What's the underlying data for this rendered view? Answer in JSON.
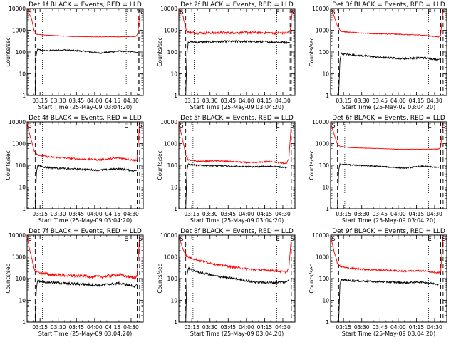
{
  "figure": {
    "background": "#ffffff",
    "events_color": "#000000",
    "lld_color": "#ff0000"
  },
  "chart_data": [
    {
      "type": "line",
      "title": "Det 1f BLACK = Events, RED = LLD",
      "xlabel": "Start Time (25-May-09 03:04:20)",
      "ylabel": "Counts/sec",
      "yscale": "log",
      "ylim": [
        1,
        10000
      ],
      "xlim": [
        "03:04:20",
        "04:40:00"
      ],
      "x_ticks": [
        "03:15",
        "03:30",
        "03:45",
        "04:00",
        "04:15",
        "04:30"
      ],
      "y_ticks": [
        "1",
        "10",
        "100",
        "1000",
        "10000"
      ],
      "markers": {
        "start": "S",
        "end": "E",
        "saa": "S"
      },
      "vlines_dashed": [
        "03:11:00",
        "04:36:00",
        "04:37:00"
      ],
      "vlines_dotted": [
        "03:17:00",
        "04:26:00"
      ],
      "series": [
        {
          "name": "BLACK = Events",
          "color": "#000000",
          "noise": 0.03,
          "x": [
            "03:11:00",
            "03:11:30",
            "03:12:30",
            "03:13:00",
            "03:20:00",
            "03:35:00",
            "03:50:00",
            "04:05:00",
            "04:20:00",
            "04:30:00",
            "04:35:30"
          ],
          "y": [
            1,
            60,
            100,
            130,
            115,
            125,
            110,
            90,
            110,
            105,
            95
          ]
        },
        {
          "name": "RED = LLD",
          "color": "#ff0000",
          "noise": 0.008,
          "x": [
            "03:04:20",
            "03:08:00",
            "03:10:00",
            "03:12:00",
            "03:20:00",
            "03:40:00",
            "04:00:00",
            "04:20:00",
            "04:34:00",
            "04:35:30",
            "04:37:30"
          ],
          "y": [
            9000,
            3500,
            1000,
            650,
            600,
            520,
            500,
            500,
            520,
            700,
            9000
          ]
        }
      ]
    },
    {
      "type": "line",
      "title": "Det 2f BLACK = Events, RED = LLD",
      "xlabel": "Start Time (25-May-09 03:04:20)",
      "ylabel": "Counts/sec",
      "yscale": "log",
      "ylim": [
        1,
        10000
      ],
      "xlim": [
        "03:04:20",
        "04:40:00"
      ],
      "x_ticks": [
        "03:15",
        "03:30",
        "03:45",
        "04:00",
        "04:15",
        "04:30"
      ],
      "y_ticks": [
        "1",
        "10",
        "100",
        "1000",
        "10000"
      ],
      "markers": {
        "start": "S",
        "end": "E",
        "saa": "S"
      },
      "vlines_dashed": [
        "03:10:00",
        "04:36:00",
        "04:37:00"
      ],
      "vlines_dotted": [
        "03:17:00",
        "04:25:00"
      ],
      "series": [
        {
          "name": "BLACK = Events",
          "color": "#000000",
          "noise": 0.05,
          "x": [
            "03:10:00",
            "03:11:00",
            "03:12:00",
            "03:20:00",
            "03:35:00",
            "03:50:00",
            "04:05:00",
            "04:20:00",
            "04:34:00",
            "04:36:00"
          ],
          "y": [
            1,
            80,
            300,
            280,
            300,
            310,
            300,
            290,
            280,
            270
          ]
        },
        {
          "name": "RED = LLD",
          "color": "#ff0000",
          "noise": 0.06,
          "x": [
            "03:04:20",
            "03:08:00",
            "03:10:00",
            "03:12:00",
            "03:20:00",
            "03:40:00",
            "04:00:00",
            "04:20:00",
            "04:34:00",
            "04:36:00",
            "04:38:00"
          ],
          "y": [
            9000,
            4000,
            1200,
            800,
            750,
            760,
            780,
            760,
            760,
            900,
            9000
          ]
        }
      ]
    },
    {
      "type": "line",
      "title": "Det 3f BLACK = Events, RED = LLD",
      "xlabel": "Start Time (25-May-09 03:04:20)",
      "ylabel": "Counts/sec",
      "yscale": "log",
      "ylim": [
        1,
        10000
      ],
      "xlim": [
        "03:04:20",
        "04:40:00"
      ],
      "x_ticks": [
        "03:15",
        "03:30",
        "03:45",
        "04:00",
        "04:15",
        "04:30"
      ],
      "y_ticks": [
        "1",
        "10",
        "100",
        "1000",
        "10000"
      ],
      "markers": {
        "start": "S",
        "end": "E",
        "saa": "S"
      },
      "vlines_dashed": [
        "03:11:00",
        "04:35:00",
        "04:37:00"
      ],
      "vlines_dotted": [
        "03:17:00",
        "04:25:00"
      ],
      "series": [
        {
          "name": "BLACK = Events",
          "color": "#000000",
          "noise": 0.04,
          "x": [
            "03:11:00",
            "03:12:00",
            "03:13:00",
            "03:20:00",
            "03:35:00",
            "03:50:00",
            "04:05:00",
            "04:20:00",
            "04:33:00",
            "04:35:00"
          ],
          "y": [
            1,
            40,
            85,
            75,
            65,
            55,
            50,
            55,
            45,
            50
          ]
        },
        {
          "name": "RED = LLD",
          "color": "#ff0000",
          "noise": 0.02,
          "x": [
            "03:04:20",
            "03:07:00",
            "03:10:00",
            "03:13:00",
            "03:20:00",
            "03:40:00",
            "04:00:00",
            "04:20:00",
            "04:33:00",
            "04:35:00",
            "04:37:00"
          ],
          "y": [
            9000,
            5000,
            1500,
            900,
            800,
            700,
            650,
            600,
            500,
            600,
            9000
          ]
        }
      ]
    },
    {
      "type": "line",
      "title": "Det 4f BLACK = Events, RED = LLD",
      "xlabel": "Start Time (25-May-09 03:04:20)",
      "ylabel": "Counts/sec",
      "yscale": "log",
      "ylim": [
        1,
        10000
      ],
      "xlim": [
        "03:04:20",
        "04:40:00"
      ],
      "x_ticks": [
        "03:15",
        "03:30",
        "03:45",
        "04:00",
        "04:15",
        "04:30"
      ],
      "y_ticks": [
        "1",
        "10",
        "100",
        "1000",
        "10000"
      ],
      "markers": {
        "start": "S",
        "end": "E",
        "saa": "S"
      },
      "vlines_dashed": [
        "03:11:00",
        "04:35:00",
        "04:37:00"
      ],
      "vlines_dotted": [
        "03:17:00",
        "04:25:00"
      ],
      "series": [
        {
          "name": "BLACK = Events",
          "color": "#000000",
          "noise": 0.04,
          "x": [
            "03:11:00",
            "03:12:00",
            "03:13:00",
            "03:20:00",
            "03:35:00",
            "03:50:00",
            "04:05:00",
            "04:20:00",
            "04:33:00",
            "04:35:00"
          ],
          "y": [
            1,
            40,
            100,
            80,
            70,
            65,
            60,
            70,
            55,
            60
          ]
        },
        {
          "name": "RED = LLD",
          "color": "#ff0000",
          "noise": 0.04,
          "x": [
            "03:04:20",
            "03:07:00",
            "03:10:00",
            "03:13:00",
            "03:20:00",
            "03:35:00",
            "03:50:00",
            "04:05:00",
            "04:20:00",
            "04:33:00",
            "04:35:00",
            "04:37:00"
          ],
          "y": [
            9000,
            2000,
            500,
            300,
            250,
            220,
            190,
            180,
            220,
            170,
            180,
            9000
          ]
        }
      ]
    },
    {
      "type": "line",
      "title": "Det 5f BLACK = Events, RED = LLD",
      "xlabel": "Start Time (25-May-09 03:04:20)",
      "ylabel": "Counts/sec",
      "yscale": "log",
      "ylim": [
        1,
        10000
      ],
      "xlim": [
        "03:04:20",
        "04:40:00"
      ],
      "x_ticks": [
        "03:15",
        "03:30",
        "03:45",
        "04:00",
        "04:15",
        "04:30"
      ],
      "y_ticks": [
        "1",
        "10",
        "100",
        "1000",
        "10000"
      ],
      "markers": {
        "start": "S",
        "end": "E",
        "saa": "S"
      },
      "vlines_dashed": [
        "03:10:00",
        "04:35:00",
        "04:37:00"
      ],
      "vlines_dotted": [
        "03:16:00",
        "04:25:00"
      ],
      "series": [
        {
          "name": "BLACK = Events",
          "color": "#000000",
          "noise": 0.03,
          "x": [
            "03:10:00",
            "03:11:00",
            "03:12:00",
            "03:20:00",
            "03:35:00",
            "03:50:00",
            "04:05:00",
            "04:20:00",
            "04:33:00",
            "04:35:00"
          ],
          "y": [
            1,
            60,
            110,
            100,
            95,
            90,
            85,
            90,
            80,
            85
          ]
        },
        {
          "name": "RED = LLD",
          "color": "#ff0000",
          "noise": 0.03,
          "x": [
            "03:04:20",
            "03:07:00",
            "03:10:00",
            "03:12:00",
            "03:20:00",
            "03:35:00",
            "03:50:00",
            "04:05:00",
            "04:20:00",
            "04:33:00",
            "04:35:00",
            "04:37:00"
          ],
          "y": [
            9000,
            2000,
            300,
            180,
            150,
            160,
            145,
            130,
            150,
            120,
            200,
            9000
          ]
        }
      ]
    },
    {
      "type": "line",
      "title": "Det 6f BLACK = Events, RED = LLD",
      "xlabel": "Start Time (25-May-09 03:04:20)",
      "ylabel": "Counts/sec",
      "yscale": "log",
      "ylim": [
        1,
        10000
      ],
      "xlim": [
        "03:04:20",
        "04:40:00"
      ],
      "x_ticks": [
        "03:15",
        "03:30",
        "03:45",
        "04:00",
        "04:15",
        "04:30"
      ],
      "y_ticks": [
        "1",
        "10",
        "100",
        "1000",
        "10000"
      ],
      "markers": {
        "start": "S",
        "end": "E",
        "saa": "S"
      },
      "vlines_dashed": [
        "03:10:00",
        "04:35:00",
        "04:37:00"
      ],
      "vlines_dotted": [
        "03:16:00",
        "04:25:00"
      ],
      "series": [
        {
          "name": "BLACK = Events",
          "color": "#000000",
          "noise": 0.03,
          "x": [
            "03:10:00",
            "03:11:00",
            "03:12:00",
            "03:20:00",
            "03:35:00",
            "03:50:00",
            "04:05:00",
            "04:20:00",
            "04:33:00",
            "04:35:00"
          ],
          "y": [
            1,
            60,
            110,
            105,
            95,
            85,
            75,
            90,
            80,
            85
          ]
        },
        {
          "name": "RED = LLD",
          "color": "#ff0000",
          "noise": 0.01,
          "x": [
            "03:04:20",
            "03:07:00",
            "03:10:00",
            "03:12:00",
            "03:20:00",
            "03:40:00",
            "04:00:00",
            "04:20:00",
            "04:33:00",
            "04:35:00",
            "04:37:00"
          ],
          "y": [
            9000,
            3000,
            900,
            750,
            650,
            600,
            550,
            550,
            560,
            650,
            9000
          ]
        }
      ]
    },
    {
      "type": "line",
      "title": "Det 7f BLACK = Events, RED = LLD",
      "xlabel": "Start Time (25-May-09 03:04:20)",
      "ylabel": "Counts/sec",
      "yscale": "log",
      "ylim": [
        1,
        10000
      ],
      "xlim": [
        "03:04:20",
        "04:40:00"
      ],
      "x_ticks": [
        "03:15",
        "03:30",
        "03:45",
        "04:00",
        "04:15",
        "04:30"
      ],
      "y_ticks": [
        "1",
        "10",
        "100",
        "1000",
        "10000"
      ],
      "markers": {
        "start": "S",
        "end": "E",
        "saa": "S"
      },
      "vlines_dashed": [
        "03:11:00",
        "04:35:00",
        "04:37:00"
      ],
      "vlines_dotted": [
        "03:17:00",
        "04:25:00"
      ],
      "series": [
        {
          "name": "BLACK = Events",
          "color": "#000000",
          "noise": 0.06,
          "x": [
            "03:11:00",
            "03:12:00",
            "03:13:00",
            "03:20:00",
            "03:35:00",
            "03:50:00",
            "04:05:00",
            "04:20:00",
            "04:33:00",
            "04:35:00"
          ],
          "y": [
            1,
            40,
            80,
            70,
            60,
            55,
            50,
            60,
            45,
            55
          ]
        },
        {
          "name": "RED = LLD",
          "color": "#ff0000",
          "noise": 0.07,
          "x": [
            "03:04:20",
            "03:07:00",
            "03:10:00",
            "03:13:00",
            "03:20:00",
            "03:35:00",
            "03:50:00",
            "04:05:00",
            "04:20:00",
            "04:33:00",
            "04:35:00",
            "04:37:00"
          ],
          "y": [
            9000,
            1500,
            300,
            200,
            160,
            140,
            130,
            120,
            150,
            110,
            130,
            9000
          ]
        }
      ]
    },
    {
      "type": "line",
      "title": "Det 8f BLACK = Events, RED = LLD",
      "xlabel": "Start Time (25-May-09 03:04:20)",
      "ylabel": "Counts/sec",
      "yscale": "log",
      "ylim": [
        1,
        10000
      ],
      "xlim": [
        "03:04:20",
        "04:40:00"
      ],
      "x_ticks": [
        "03:15",
        "03:30",
        "03:45",
        "04:00",
        "04:15",
        "04:30"
      ],
      "y_ticks": [
        "1",
        "10",
        "100",
        "1000",
        "10000"
      ],
      "markers": {
        "start": "S",
        "end": "E",
        "saa": "S"
      },
      "vlines_dashed": [
        "03:10:00",
        "04:35:00",
        "04:37:00"
      ],
      "vlines_dotted": [
        "03:16:00",
        "04:25:00"
      ],
      "series": [
        {
          "name": "BLACK = Events",
          "color": "#000000",
          "noise": 0.05,
          "x": [
            "03:10:00",
            "03:11:00",
            "03:12:00",
            "03:20:00",
            "03:35:00",
            "03:50:00",
            "04:05:00",
            "04:20:00",
            "04:33:00",
            "04:35:00"
          ],
          "y": [
            1,
            120,
            300,
            200,
            130,
            100,
            70,
            65,
            70,
            90
          ]
        },
        {
          "name": "RED = LLD",
          "color": "#ff0000",
          "noise": 0.05,
          "x": [
            "03:04:20",
            "03:07:00",
            "03:10:00",
            "03:12:00",
            "03:20:00",
            "03:35:00",
            "03:50:00",
            "04:05:00",
            "04:20:00",
            "04:33:00",
            "04:35:00",
            "04:37:00"
          ],
          "y": [
            9000,
            3000,
            1200,
            1000,
            700,
            450,
            330,
            260,
            240,
            200,
            300,
            9000
          ]
        }
      ]
    },
    {
      "type": "line",
      "title": "Det 9f BLACK = Events, RED = LLD",
      "xlabel": "Start Time (25-May-09 03:04:20)",
      "ylabel": "Counts/sec",
      "yscale": "log",
      "ylim": [
        1,
        10000
      ],
      "xlim": [
        "03:04:20",
        "04:40:00"
      ],
      "x_ticks": [
        "03:15",
        "03:30",
        "03:45",
        "04:00",
        "04:15",
        "04:30"
      ],
      "y_ticks": [
        "1",
        "10",
        "100",
        "1000",
        "10000"
      ],
      "markers": {
        "start": "S",
        "end": "E",
        "saa": "S"
      },
      "vlines_dashed": [
        "03:11:00",
        "04:35:00",
        "04:37:00"
      ],
      "vlines_dotted": [
        "03:17:00",
        "04:25:00"
      ],
      "series": [
        {
          "name": "BLACK = Events",
          "color": "#000000",
          "noise": 0.04,
          "x": [
            "03:11:00",
            "03:12:00",
            "03:13:00",
            "03:20:00",
            "03:35:00",
            "03:50:00",
            "04:05:00",
            "04:20:00",
            "04:33:00",
            "04:35:00"
          ],
          "y": [
            1,
            50,
            90,
            80,
            75,
            70,
            65,
            70,
            55,
            60
          ]
        },
        {
          "name": "RED = LLD",
          "color": "#ff0000",
          "noise": 0.04,
          "x": [
            "03:04:20",
            "03:07:00",
            "03:10:00",
            "03:13:00",
            "03:20:00",
            "03:35:00",
            "03:50:00",
            "04:05:00",
            "04:20:00",
            "04:33:00",
            "04:35:00",
            "04:37:00"
          ],
          "y": [
            9000,
            2000,
            500,
            350,
            300,
            260,
            240,
            220,
            230,
            180,
            200,
            9000
          ]
        }
      ]
    }
  ]
}
